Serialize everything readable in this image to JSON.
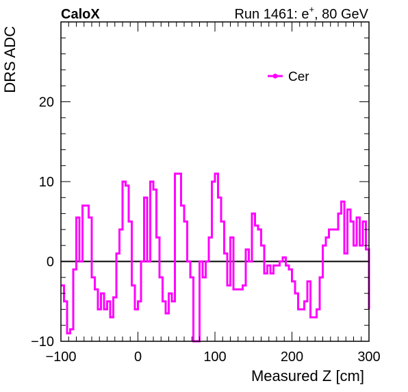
{
  "header": {
    "left_label": "CaloX",
    "right_label_prefix": "Run 1461: e",
    "right_label_sup": "+",
    "right_label_suffix": ", 80 GeV"
  },
  "chart_data": {
    "type": "line",
    "style": "step",
    "xlabel": "Measured Z [cm]",
    "ylabel": "DRS ADC",
    "xlim": [
      -100,
      300
    ],
    "ylim": [
      -10,
      30
    ],
    "xticks": [
      -100,
      0,
      100,
      200,
      300
    ],
    "yticks": [
      -10,
      0,
      10,
      20
    ],
    "zero_line": true,
    "legend_position": "top-right",
    "series": [
      {
        "name": "Cer",
        "color": "#ff00ff",
        "x": [
          -100,
          -96,
          -92,
          -88,
          -84,
          -80,
          -76,
          -72,
          -68,
          -64,
          -60,
          -56,
          -52,
          -48,
          -44,
          -40,
          -36,
          -32,
          -28,
          -24,
          -20,
          -16,
          -12,
          -8,
          -4,
          0,
          4,
          8,
          12,
          16,
          20,
          24,
          28,
          32,
          36,
          40,
          44,
          48,
          52,
          56,
          60,
          64,
          68,
          72,
          76,
          80,
          84,
          88,
          92,
          96,
          100,
          104,
          108,
          112,
          116,
          120,
          124,
          128,
          132,
          136,
          140,
          144,
          148,
          152,
          156,
          160,
          164,
          168,
          172,
          176,
          180,
          184,
          188,
          192,
          196,
          200,
          204,
          208,
          212,
          216,
          220,
          224,
          228,
          232,
          236,
          240,
          244,
          248,
          252,
          256,
          260,
          264,
          268,
          272,
          276,
          280,
          284,
          288,
          292,
          296
        ],
        "y": [
          -3,
          -5,
          -9,
          -8.5,
          -1,
          5.5,
          0,
          7,
          7,
          5.5,
          -2,
          -3.5,
          -6,
          -4,
          -6,
          -5,
          -7,
          -4.5,
          1,
          4,
          10,
          9.5,
          5,
          -3,
          -6,
          -5,
          0,
          8,
          0,
          10,
          9,
          3,
          -2,
          -5,
          -6.5,
          -4,
          -5,
          11,
          11,
          7,
          5,
          0,
          -2,
          -10,
          -10,
          0,
          -2,
          0,
          3,
          10,
          11,
          8,
          5,
          1,
          -3,
          3,
          -3.5,
          -3.5,
          -3.5,
          -3,
          1.5,
          0,
          6,
          4.5,
          4,
          2,
          -1.5,
          -0.5,
          -1.5,
          -0.5,
          -0.5,
          0,
          0.5,
          -0.5,
          -1,
          -2.5,
          -4,
          -6,
          -6,
          -5,
          -2.5,
          -7,
          -7,
          -6,
          -2,
          2,
          3,
          4,
          4,
          4,
          6,
          7.5,
          1,
          6.5,
          5,
          2,
          5.5,
          2,
          5,
          1.5
        ]
      }
    ]
  }
}
